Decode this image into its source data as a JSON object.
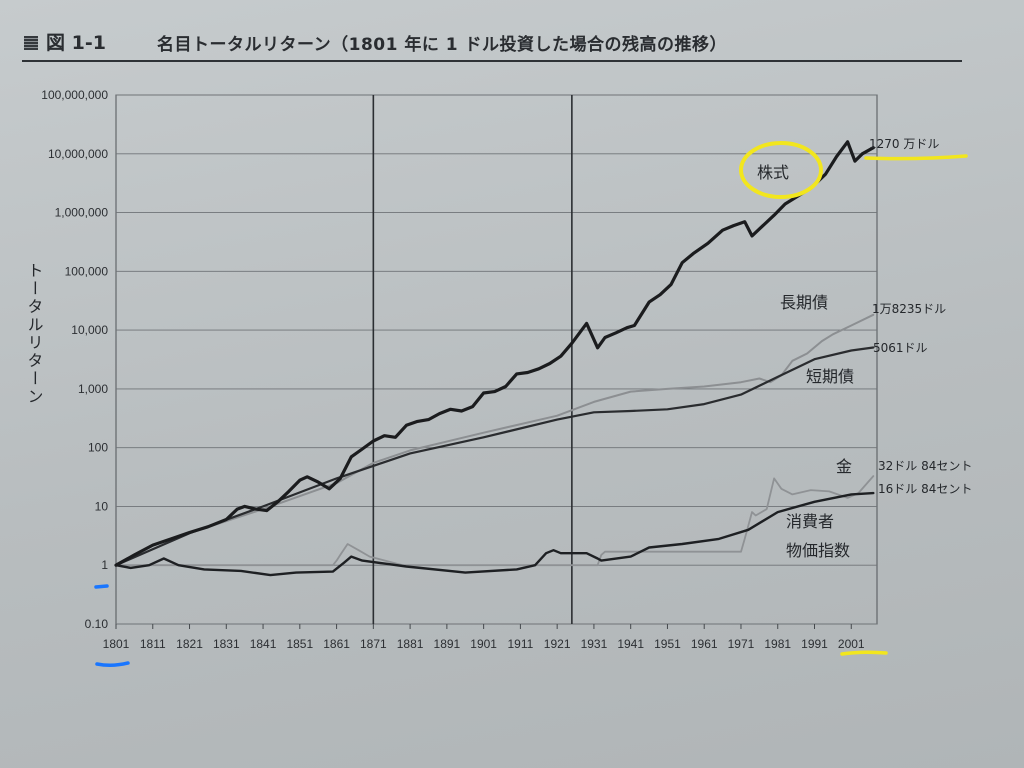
{
  "figure": {
    "number": "図 1-1",
    "title": "名目トータルリターン（1801 年に 1 ドル投資した場合の残高の推移）"
  },
  "chart_data": {
    "type": "line",
    "yscale": "log",
    "ylabel": "トータルリターン",
    "ylim": [
      0.1,
      100000000
    ],
    "xlim": [
      1801,
      2008
    ],
    "y_ticks": [
      "100,000,000",
      "10,000,000",
      "1,000,000",
      "100,000",
      "10,000",
      "1,000",
      "100",
      "10",
      "1",
      "0.10"
    ],
    "y_tick_values": [
      100000000,
      10000000,
      1000000,
      100000,
      10000,
      1000,
      100,
      10,
      1,
      0.1
    ],
    "x_ticks": [
      "1801",
      "1811",
      "1821",
      "1831",
      "1841",
      "1851",
      "1861",
      "1871",
      "1881",
      "1891",
      "1901",
      "1911",
      "1921",
      "1931",
      "1941",
      "1951",
      "1961",
      "1971",
      "1981",
      "1991",
      "2001"
    ],
    "x_tick_values": [
      1801,
      1811,
      1821,
      1831,
      1841,
      1851,
      1861,
      1871,
      1881,
      1891,
      1901,
      1911,
      1921,
      1931,
      1941,
      1951,
      1961,
      1971,
      1981,
      1991,
      2001
    ],
    "vertical_lines": [
      1871,
      1925
    ],
    "grid": "horizontal",
    "series": [
      {
        "name": "株式",
        "end_label": "1270 万ドル",
        "color": "#1b1c1e",
        "width": 3.2,
        "x": [
          1801,
          1806,
          1811,
          1816,
          1821,
          1826,
          1831,
          1834,
          1836,
          1839,
          1842,
          1845,
          1848,
          1851,
          1853,
          1856,
          1859,
          1862,
          1865,
          1868,
          1871,
          1874,
          1877,
          1880,
          1883,
          1886,
          1889,
          1892,
          1895,
          1898,
          1901,
          1904,
          1907,
          1910,
          1913,
          1916,
          1919,
          1922,
          1925,
          1929,
          1932,
          1934,
          1937,
          1940,
          1942,
          1946,
          1949,
          1952,
          1955,
          1958,
          1962,
          1966,
          1969,
          1972,
          1974,
          1977,
          1980,
          1983,
          1987,
          1990,
          1994,
          1997,
          2000,
          2002,
          2004,
          2007
        ],
        "y": [
          1,
          1.5,
          2.2,
          2.8,
          3.6,
          4.5,
          6,
          9,
          10,
          9,
          8.5,
          12,
          18,
          28,
          32,
          26,
          20,
          30,
          70,
          95,
          130,
          160,
          150,
          240,
          280,
          300,
          380,
          450,
          420,
          500,
          850,
          900,
          1100,
          1800,
          1900,
          2200,
          2700,
          3600,
          6000,
          13000,
          5000,
          7500,
          9000,
          11000,
          12000,
          30000,
          40000,
          60000,
          140000,
          200000,
          300000,
          500000,
          600000,
          700000,
          400000,
          600000,
          900000,
          1400000,
          2000000,
          2600000,
          4500000,
          9000000,
          16000000,
          7500000,
          10000000,
          12700000
        ]
      },
      {
        "name": "短期債",
        "end_label": "5061ドル",
        "color": "#2a2c2f",
        "width": 2.2,
        "x": [
          1801,
          1821,
          1841,
          1861,
          1881,
          1901,
          1921,
          1931,
          1941,
          1951,
          1961,
          1971,
          1981,
          1991,
          2001,
          2007
        ],
        "y": [
          1,
          3.5,
          10,
          30,
          80,
          150,
          300,
          400,
          420,
          450,
          550,
          800,
          1600,
          3200,
          4500,
          5061
        ]
      },
      {
        "name": "長期債",
        "end_label": "1万8235ドル",
        "color": "#8c8f92",
        "width": 2,
        "x": [
          1801,
          1821,
          1841,
          1861,
          1871,
          1881,
          1901,
          1921,
          1931,
          1941,
          1951,
          1961,
          1971,
          1976,
          1979,
          1982,
          1985,
          1989,
          1993,
          1996,
          2001,
          2007
        ],
        "y": [
          1,
          3.5,
          9,
          25,
          55,
          90,
          180,
          350,
          600,
          900,
          1000,
          1100,
          1300,
          1500,
          1300,
          1700,
          3000,
          4000,
          6500,
          8500,
          12000,
          18235
        ]
      },
      {
        "name": "金",
        "end_label": "32ドル 84セント",
        "color": "#8f9295",
        "width": 1.8,
        "x": [
          1801,
          1860,
          1861,
          1862,
          1864,
          1867,
          1870,
          1879,
          1932,
          1933,
          1934,
          1971,
          1972,
          1974,
          1975,
          1978,
          1980,
          1982,
          1985,
          1990,
          1995,
          2000,
          2003,
          2007
        ],
        "y": [
          1,
          1,
          1.2,
          1.5,
          2.3,
          1.8,
          1.4,
          1,
          1,
          1.5,
          1.7,
          1.7,
          2.8,
          8,
          7,
          9,
          30,
          20,
          16,
          19,
          18,
          14,
          17,
          32.84
        ]
      },
      {
        "name": "消費者物価指数",
        "end_label": "16ドル 84セント",
        "color": "#1e2023",
        "width": 2.4,
        "x": [
          1801,
          1805,
          1810,
          1814,
          1818,
          1825,
          1835,
          1843,
          1850,
          1860,
          1863,
          1865,
          1868,
          1880,
          1896,
          1910,
          1915,
          1918,
          1920,
          1922,
          1926,
          1929,
          1932,
          1933,
          1941,
          1946,
          1955,
          1965,
          1973,
          1981,
          1991,
          2001,
          2007
        ],
        "y": [
          1,
          0.9,
          1,
          1.3,
          1,
          0.85,
          0.8,
          0.68,
          0.75,
          0.78,
          1.1,
          1.4,
          1.2,
          0.95,
          0.75,
          0.85,
          1,
          1.6,
          1.8,
          1.6,
          1.6,
          1.6,
          1.3,
          1.2,
          1.4,
          2,
          2.3,
          2.8,
          4,
          8,
          12,
          16,
          16.84
        ]
      }
    ],
    "labels": {
      "stock": "株式",
      "long_bond": "長期債",
      "short_bond": "短期債",
      "gold": "金",
      "cpi_line1": "消費者",
      "cpi_line2": "物価指数"
    }
  },
  "annotation_colors": {
    "highlight_yellow": "#f2e61e",
    "highlight_blue": "#1976ff"
  }
}
